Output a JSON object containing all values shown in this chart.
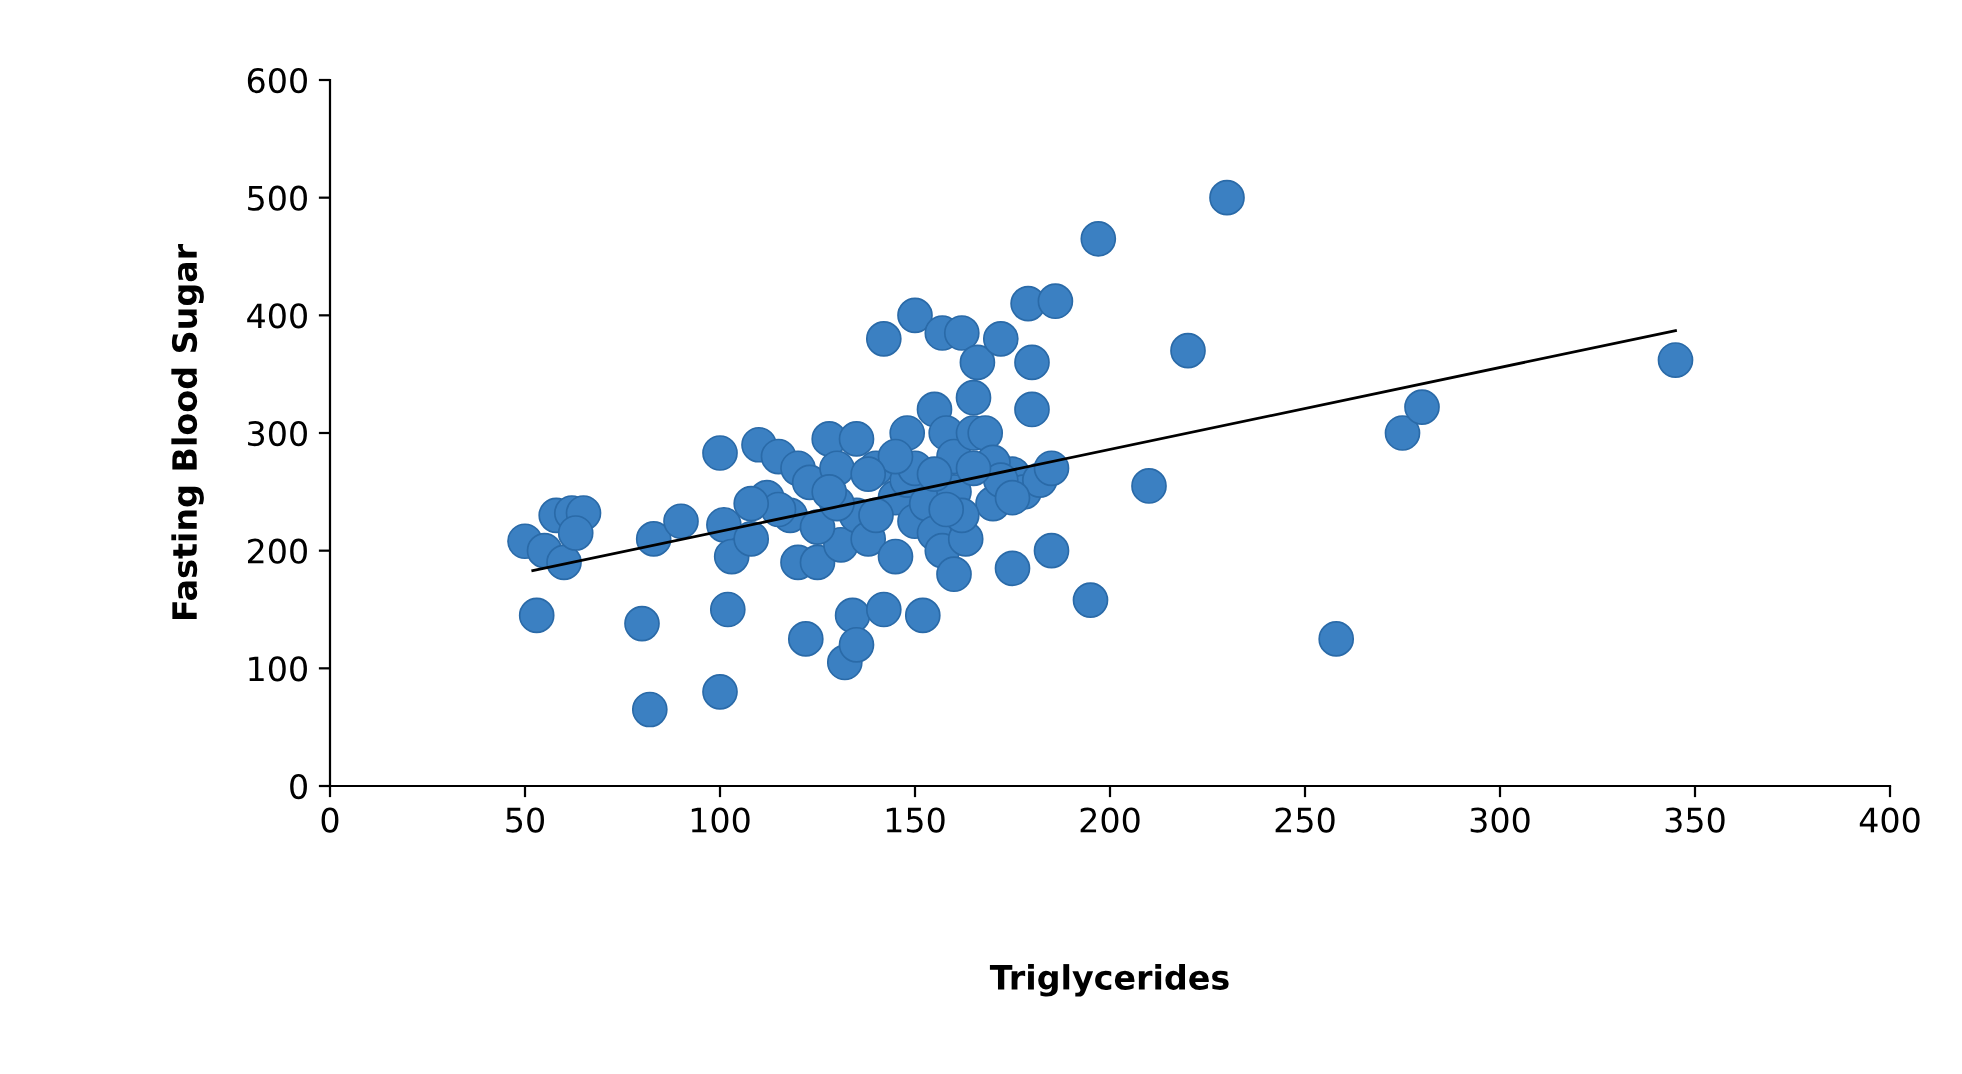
{
  "chart_data": {
    "type": "scatter",
    "xlabel": "Triglycerides",
    "ylabel": "Fasting Blood Sugar",
    "xlim": [
      0,
      400
    ],
    "ylim": [
      0,
      600
    ],
    "xticks": [
      0,
      50,
      100,
      150,
      200,
      250,
      300,
      350,
      400
    ],
    "yticks": [
      0,
      100,
      200,
      300,
      400,
      500,
      600
    ],
    "grid": false,
    "legend": false,
    "marker": "circle",
    "series": [
      {
        "color": "#3b80c2",
        "x": [
          50,
          55,
          58,
          62,
          65,
          60,
          63,
          53,
          80,
          82,
          83,
          90,
          100,
          102,
          100,
          101,
          103,
          108,
          110,
          112,
          115,
          120,
          120,
          122,
          123,
          125,
          128,
          130,
          131,
          132,
          134,
          135,
          135,
          135,
          138,
          140,
          142,
          142,
          145,
          145,
          148,
          148,
          150,
          150,
          152,
          153,
          155,
          155,
          157,
          157,
          158,
          160,
          160,
          160,
          162,
          163,
          165,
          165,
          166,
          170,
          172,
          175,
          175,
          178,
          179,
          180,
          180,
          182,
          185,
          185,
          186,
          195,
          197,
          210,
          220,
          230,
          258,
          275,
          280,
          345,
          118,
          125,
          140,
          150,
          155,
          162,
          168,
          170,
          172,
          145,
          130,
          115,
          108,
          128,
          138,
          158,
          165,
          175
        ],
        "values": [
          208,
          200,
          230,
          232,
          232,
          190,
          215,
          145,
          138,
          65,
          210,
          225,
          80,
          150,
          283,
          222,
          195,
          210,
          290,
          245,
          280,
          270,
          190,
          125,
          258,
          190,
          295,
          270,
          205,
          105,
          145,
          120,
          295,
          230,
          210,
          270,
          380,
          150,
          245,
          195,
          300,
          260,
          400,
          225,
          145,
          240,
          320,
          215,
          385,
          200,
          300,
          280,
          250,
          180,
          385,
          210,
          330,
          300,
          360,
          240,
          380,
          185,
          265,
          250,
          410,
          320,
          360,
          260,
          270,
          200,
          412,
          158,
          465,
          255,
          370,
          500,
          125,
          300,
          322,
          362,
          230,
          220,
          230,
          270,
          265,
          230,
          300,
          275,
          260,
          280,
          240,
          235,
          240,
          250,
          265,
          235,
          270,
          245
        ]
      },
      {
        "type": "line",
        "color": "#000000",
        "marker": "none",
        "x": [
          52,
          345
        ],
        "values": [
          183,
          387
        ]
      }
    ]
  }
}
